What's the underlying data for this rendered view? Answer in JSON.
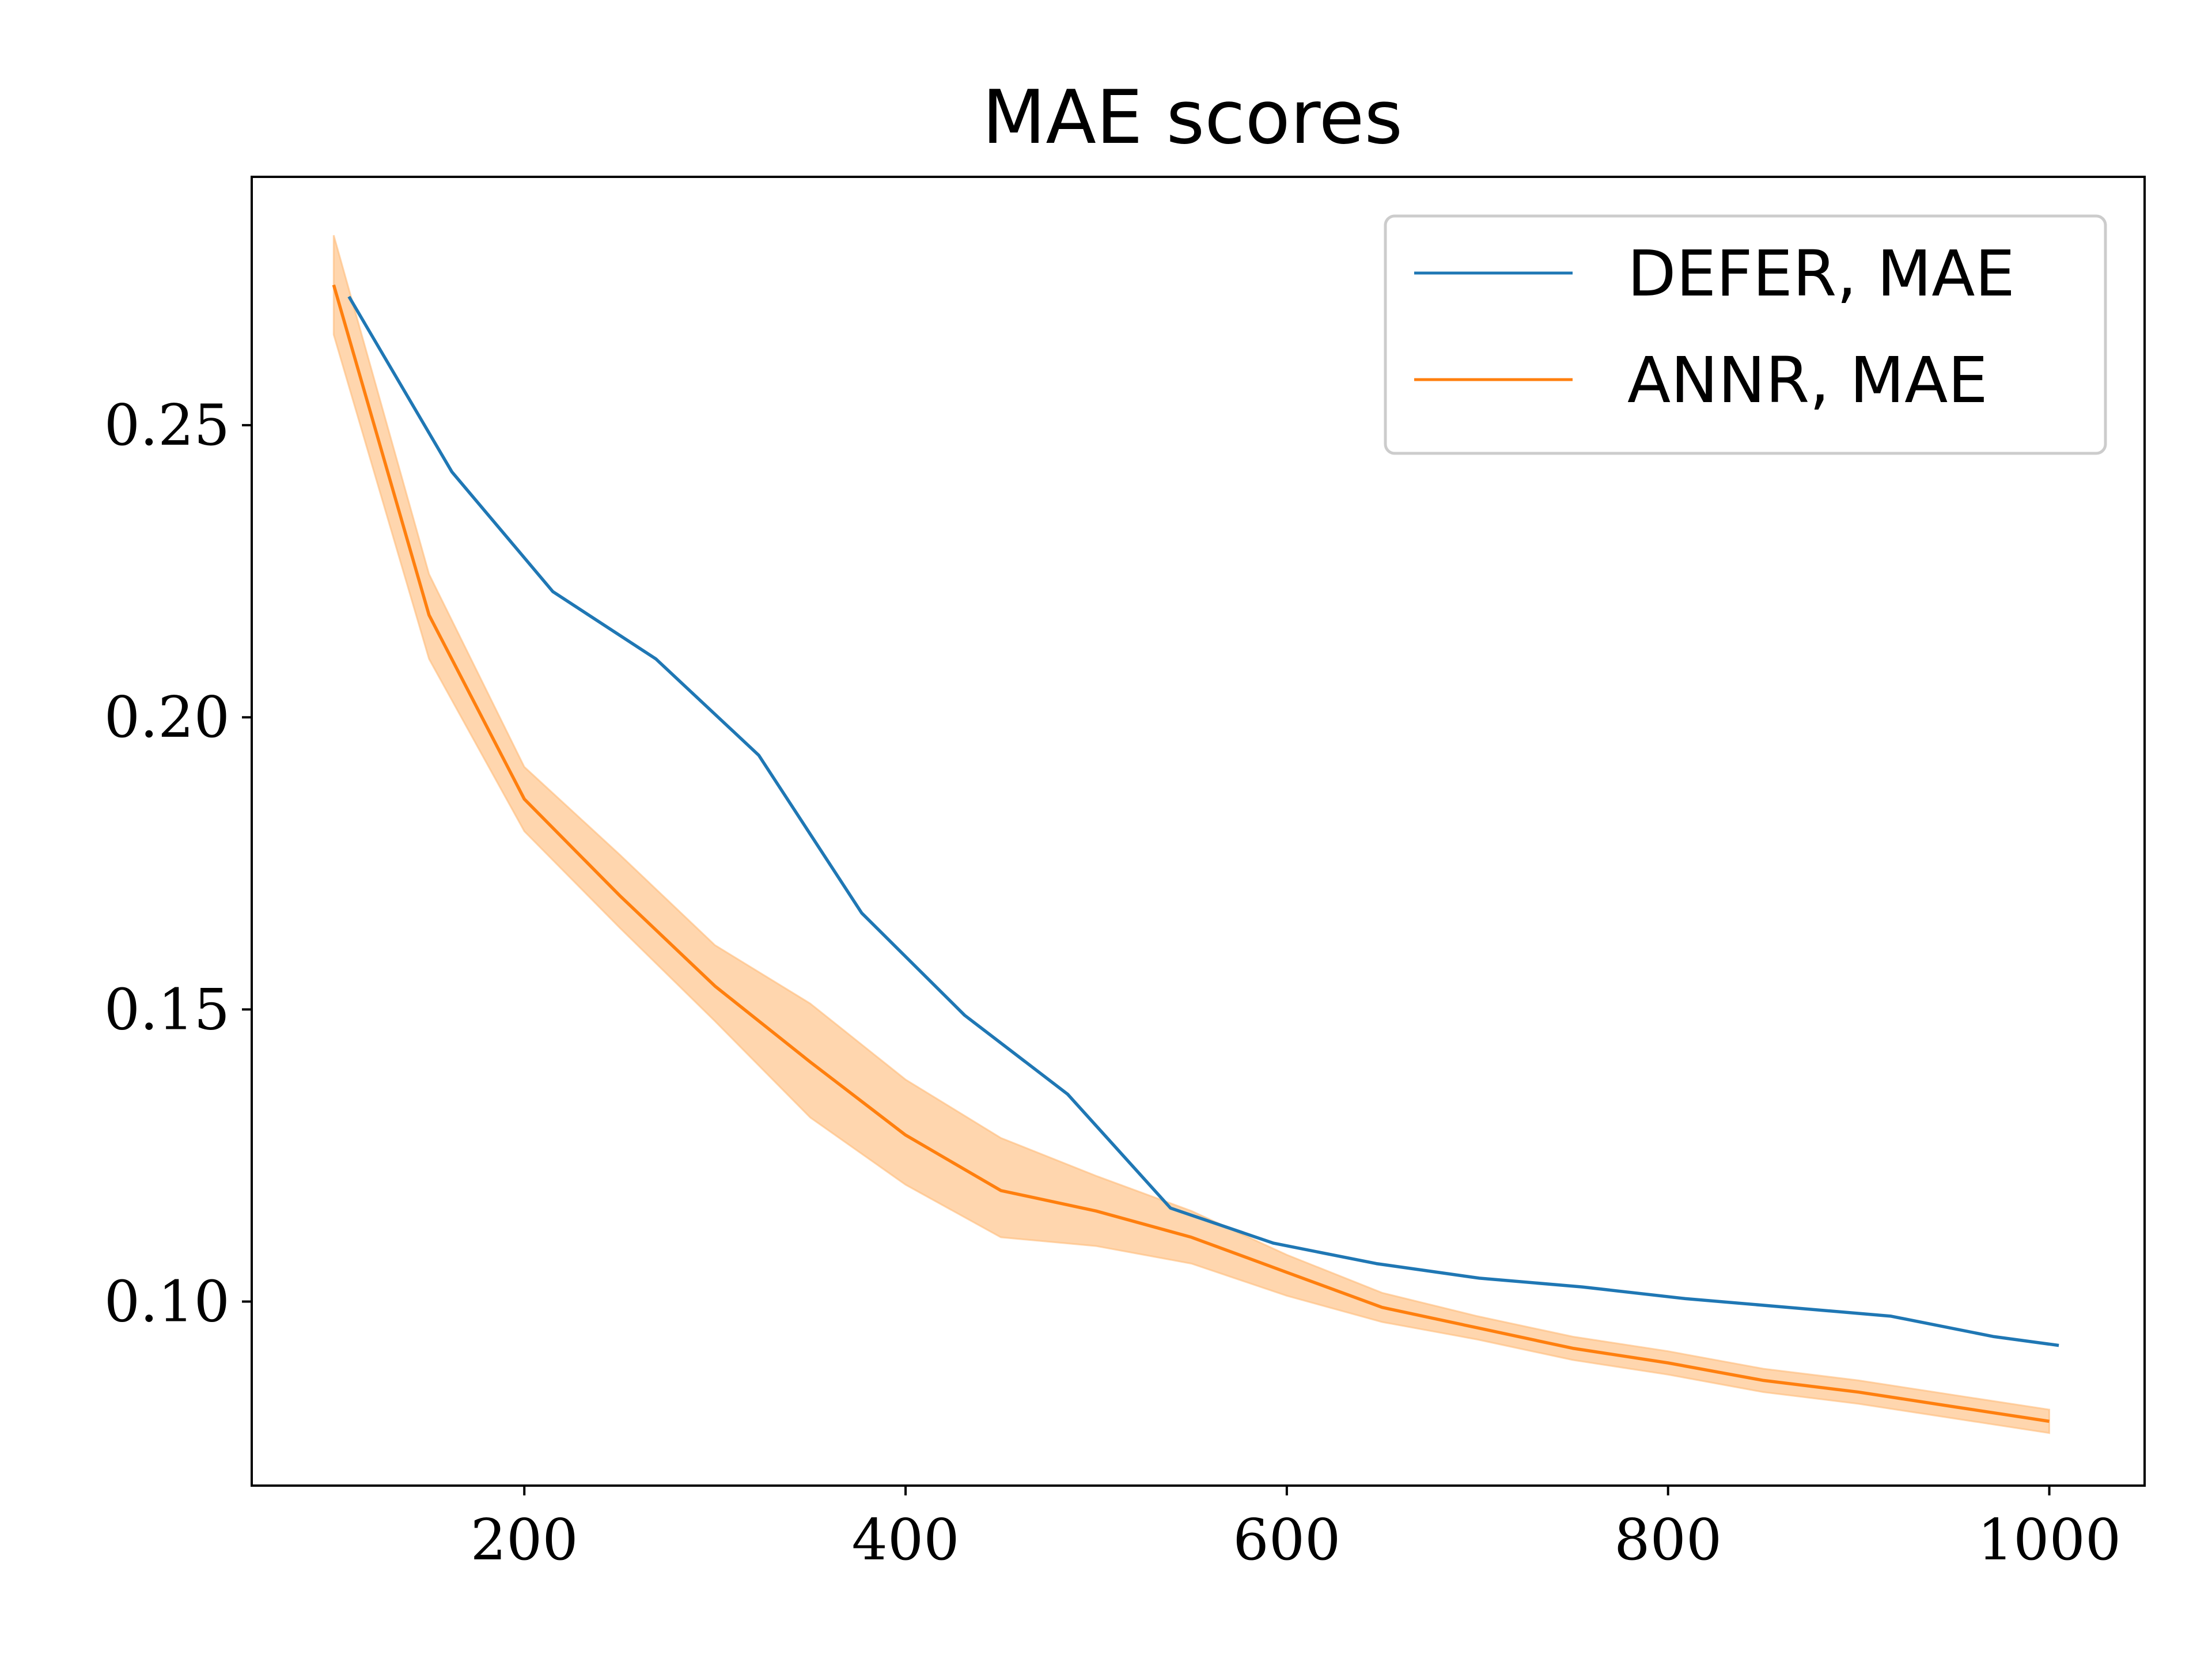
{
  "chart_data": {
    "type": "line",
    "title": "MAE scores",
    "xlabel": "",
    "ylabel": "",
    "xlim": [
      57,
      1050
    ],
    "ylim": [
      0.0685,
      0.2925
    ],
    "x_ticks": [
      200,
      400,
      600,
      800,
      1000
    ],
    "y_ticks": [
      0.1,
      0.15,
      0.2,
      0.25
    ],
    "x_tick_labels": [
      "200",
      "400",
      "600",
      "800",
      "1000"
    ],
    "y_tick_labels": [
      "0.10",
      "0.15",
      "0.20",
      "0.25"
    ],
    "grid": false,
    "legend_position": "top-right",
    "series": [
      {
        "name": "DEFER, MAE",
        "color": "#1f77b4",
        "x": [
          108,
          162,
          215,
          269,
          323,
          377,
          431,
          485,
          539,
          593,
          647,
          701,
          755,
          809,
          863,
          917,
          971,
          1005
        ],
        "y": [
          0.272,
          0.242,
          0.2215,
          0.21,
          0.1935,
          0.1665,
          0.149,
          0.1355,
          0.116,
          0.11,
          0.1065,
          0.104,
          0.1025,
          0.1005,
          0.099,
          0.0975,
          0.094,
          0.0925
        ]
      },
      {
        "name": "ANNR, MAE",
        "color": "#ff7f0e",
        "band_color": "#ffbb78",
        "x": [
          100,
          150,
          200,
          250,
          300,
          350,
          400,
          450,
          500,
          550,
          600,
          650,
          700,
          750,
          800,
          850,
          900,
          950,
          1000
        ],
        "y": [
          0.274,
          0.2175,
          0.186,
          0.1695,
          0.154,
          0.141,
          0.1285,
          0.119,
          0.1155,
          0.111,
          0.105,
          0.099,
          0.0955,
          0.092,
          0.0895,
          0.0865,
          0.0845,
          0.082,
          0.0795
        ],
        "lower": [
          0.2655,
          0.21,
          0.1805,
          0.164,
          0.148,
          0.1315,
          0.12,
          0.111,
          0.1095,
          0.1065,
          0.101,
          0.0965,
          0.0935,
          0.09,
          0.0875,
          0.0845,
          0.0825,
          0.08,
          0.0775
        ],
        "upper": [
          0.2825,
          0.2245,
          0.1915,
          0.1765,
          0.161,
          0.151,
          0.138,
          0.128,
          0.1215,
          0.1155,
          0.108,
          0.1015,
          0.0975,
          0.094,
          0.0915,
          0.0885,
          0.0865,
          0.084,
          0.0815
        ]
      }
    ]
  }
}
